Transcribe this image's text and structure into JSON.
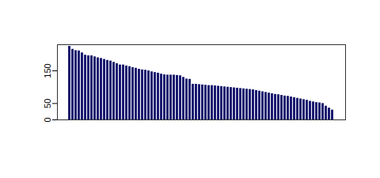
{
  "chart_data": {
    "type": "bar",
    "values": [
      225,
      216,
      212,
      211,
      205,
      198,
      196,
      196,
      193,
      190,
      188,
      185,
      182,
      180,
      176,
      172,
      168,
      168,
      165,
      163,
      160,
      158,
      155,
      153,
      152,
      150,
      147,
      145,
      143,
      140,
      138,
      137,
      137,
      137,
      136,
      135,
      130,
      125,
      124,
      109,
      109,
      108,
      107,
      106,
      105,
      105,
      104,
      103,
      102,
      101,
      100,
      99,
      98,
      97,
      96,
      95,
      94,
      93,
      92,
      90,
      88,
      86,
      84,
      82,
      80,
      78,
      77,
      75,
      73,
      72,
      70,
      68,
      66,
      64,
      62,
      60,
      57,
      55,
      53,
      52,
      50,
      42,
      36,
      30
    ],
    "color": "#191970",
    "ylim": [
      0,
      230
    ],
    "yticks": [
      0,
      50,
      150
    ],
    "tick_labels": "y",
    "grid": false
  }
}
